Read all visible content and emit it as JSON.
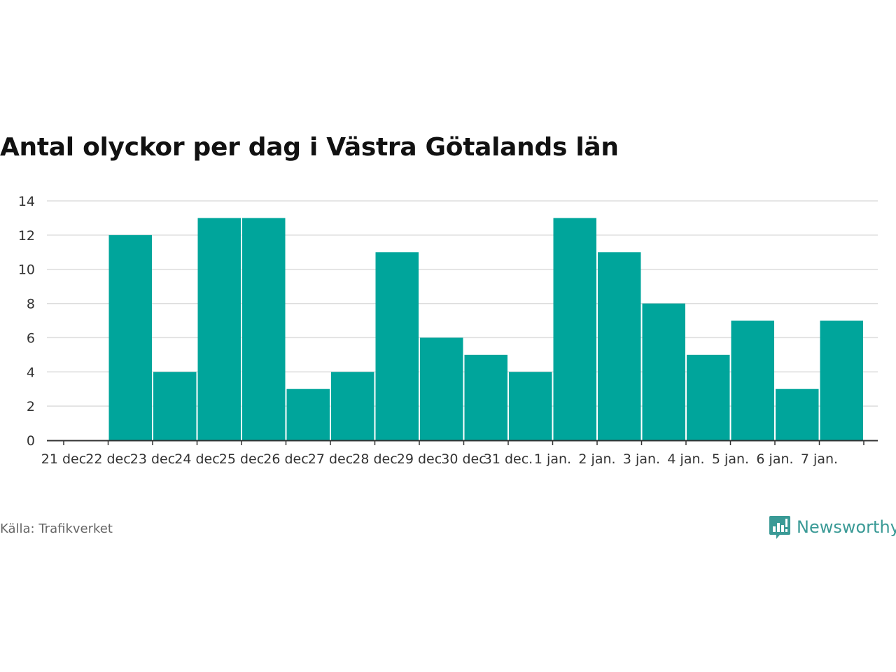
{
  "chart_data": {
    "type": "bar",
    "title": "Antal olyckor per dag i Västra Götalands län",
    "xlabel": "",
    "ylabel": "",
    "categories": [
      "21 dec",
      "22 dec",
      "23 dec",
      "24 dec",
      "25 dec",
      "26 dec",
      "27 dec",
      "28 dec",
      "29 dec",
      "30 dec",
      "31 dec.",
      "1 jan.",
      "2 jan.",
      "3 jan.",
      "4 jan.",
      "5 jan.",
      "6 jan.",
      "7 jan."
    ],
    "values": [
      0,
      12,
      4,
      13,
      13,
      3,
      4,
      11,
      6,
      5,
      4,
      13,
      11,
      8,
      5,
      7,
      3,
      7
    ],
    "ylim": [
      0,
      14
    ],
    "yticks": [
      "0",
      "2",
      "4",
      "6",
      "8",
      "10",
      "12",
      "14"
    ],
    "grid": true,
    "bar_color": "#00a59b"
  },
  "footer": {
    "source": "Källa: Trafikverket",
    "brand": "Newsworthy",
    "brand_color": "#3a9a96",
    "brand_icon": "newsworthy-logo-icon"
  }
}
